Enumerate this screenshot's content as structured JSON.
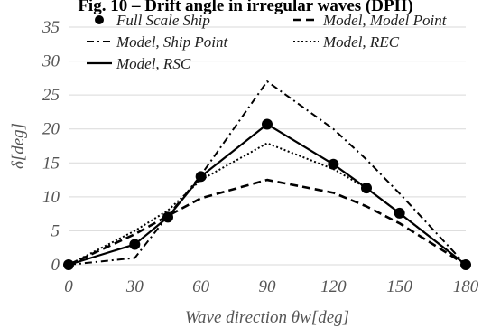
{
  "chart_data": {
    "type": "line",
    "title": "Fig. 10 – Drift angle in irregular waves (DPII)",
    "xlabel": "Wave direction θw[deg]",
    "ylabel": "δ[deg]",
    "xlim": [
      0,
      180
    ],
    "ylim": [
      0,
      35
    ],
    "xticks": [
      0,
      30,
      60,
      90,
      120,
      150,
      180
    ],
    "yticks": [
      0,
      5,
      10,
      15,
      20,
      25,
      30,
      35
    ],
    "grid": "horizontal",
    "legend_position": "top",
    "series": [
      {
        "name": "Full Scale Ship",
        "style": "solid-markers",
        "color": "#000000",
        "x": [
          0,
          30,
          45,
          60,
          90,
          120,
          135,
          150,
          180
        ],
        "y": [
          0,
          3,
          7,
          13,
          20.7,
          14.8,
          11.3,
          7.6,
          0
        ]
      },
      {
        "name": "Model, Model Point",
        "style": "dash",
        "color": "#000000",
        "x": [
          0,
          30,
          45,
          60,
          90,
          120,
          135,
          150,
          180
        ],
        "y": [
          0,
          4.5,
          7.2,
          9.8,
          12.5,
          10.6,
          8.6,
          6.1,
          0
        ]
      },
      {
        "name": "Model, Ship Point",
        "style": "dashdot",
        "color": "#000000",
        "x": [
          0,
          30,
          45,
          60,
          90,
          120,
          135,
          150,
          180
        ],
        "y": [
          0,
          1,
          7.2,
          13.2,
          27,
          20,
          15.5,
          10.5,
          0
        ]
      },
      {
        "name": "Model, REC",
        "style": "dot",
        "color": "#000000",
        "x": [
          0,
          30,
          45,
          60,
          90,
          120,
          135,
          150,
          180
        ],
        "y": [
          0,
          5,
          8,
          12.5,
          17.9,
          14.1,
          11.3,
          7.6,
          0
        ]
      },
      {
        "name": "Model, RSC",
        "style": "solid",
        "color": "#000000",
        "x": [
          0,
          30,
          45,
          60,
          90,
          120,
          135,
          150,
          180
        ],
        "y": [
          0,
          3,
          7,
          13,
          20.7,
          14.8,
          11.3,
          7.6,
          0
        ]
      }
    ]
  }
}
